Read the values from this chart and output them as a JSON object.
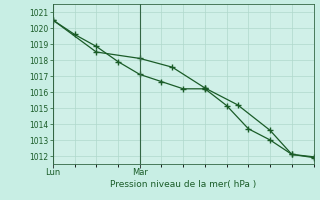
{
  "xlabel": "Pression niveau de la mer( hPa )",
  "background_color": "#c8eee4",
  "plot_bg_color": "#d0f0e8",
  "grid_color": "#b0d8cc",
  "line_color": "#1a5c28",
  "vline_color": "#336644",
  "ylim": [
    1011.5,
    1021.5
  ],
  "yticks": [
    1012,
    1013,
    1014,
    1015,
    1016,
    1017,
    1018,
    1019,
    1020,
    1021
  ],
  "xlim": [
    0,
    12
  ],
  "num_grid_cols": 12,
  "series1_x": [
    0,
    1,
    2,
    3,
    4,
    5,
    6,
    7,
    8,
    9,
    10,
    11,
    12
  ],
  "series1_y": [
    1020.5,
    1019.6,
    1018.85,
    1017.9,
    1017.1,
    1016.65,
    1016.2,
    1016.2,
    1015.15,
    1013.7,
    1013.0,
    1012.1,
    1011.95
  ],
  "series2_x": [
    0,
    2,
    4,
    5.5,
    7,
    7,
    8.5,
    10,
    11,
    12
  ],
  "series2_y": [
    1020.5,
    1018.5,
    1018.1,
    1017.55,
    1016.25,
    1016.25,
    1015.2,
    1013.6,
    1012.1,
    1011.9
  ],
  "day_labels": [
    "Lun",
    "Mar"
  ],
  "day_positions": [
    0,
    4
  ],
  "lun_x": 0,
  "mar_x": 4
}
